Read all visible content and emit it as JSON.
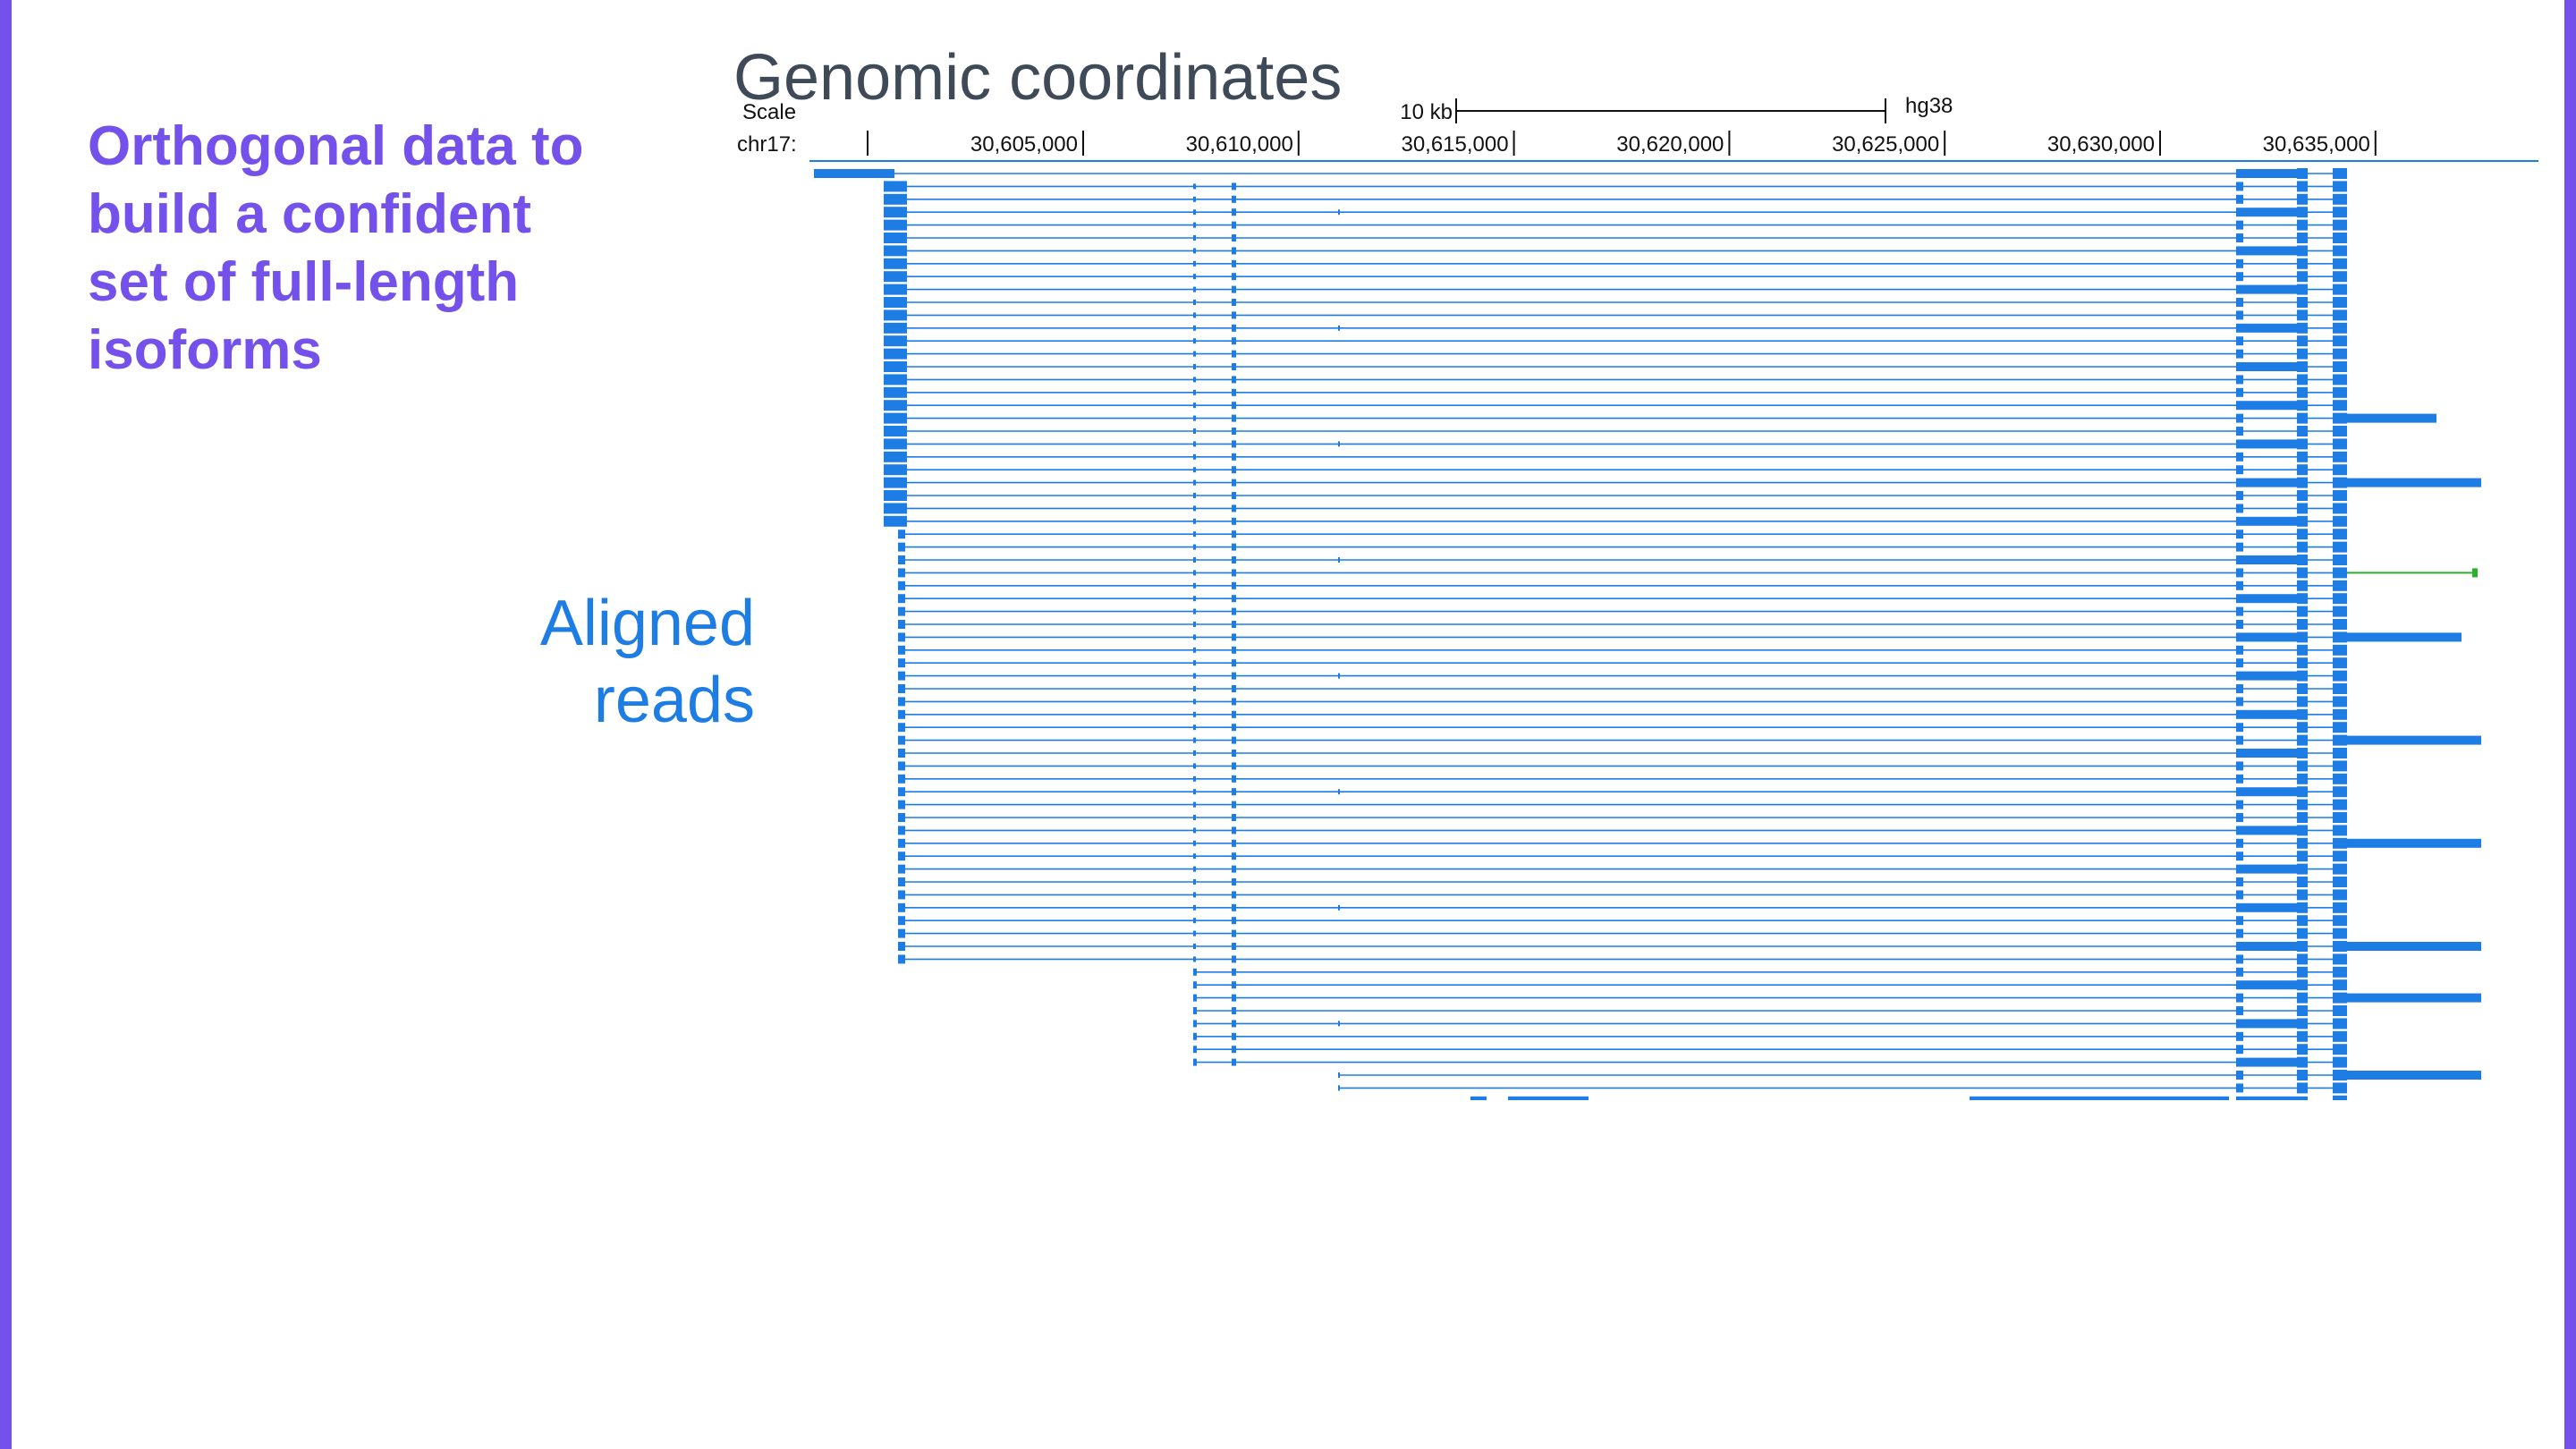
{
  "slide": {
    "title": "Orthogonal data to build a confident set of full-length isoforms",
    "reads_label_line1": "Aligned",
    "reads_label_line2": "reads"
  },
  "browser": {
    "title": "Genomic coordinates",
    "scale_label": "Scale",
    "scale_bar_label": "10 kb",
    "assembly": "hg38",
    "chrom_label": "chr17:",
    "ticks": [
      "30,605,000",
      "30,610,000",
      "30,615,000",
      "30,620,000",
      "30,625,000",
      "30,630,000",
      "30,635,000"
    ],
    "colors": {
      "read": "#1d7de4",
      "highlight": "#2bb02b",
      "accent": "#7451eb",
      "title": "#3f4a58"
    },
    "read_count": 73,
    "highlight_read_index": 31
  }
}
